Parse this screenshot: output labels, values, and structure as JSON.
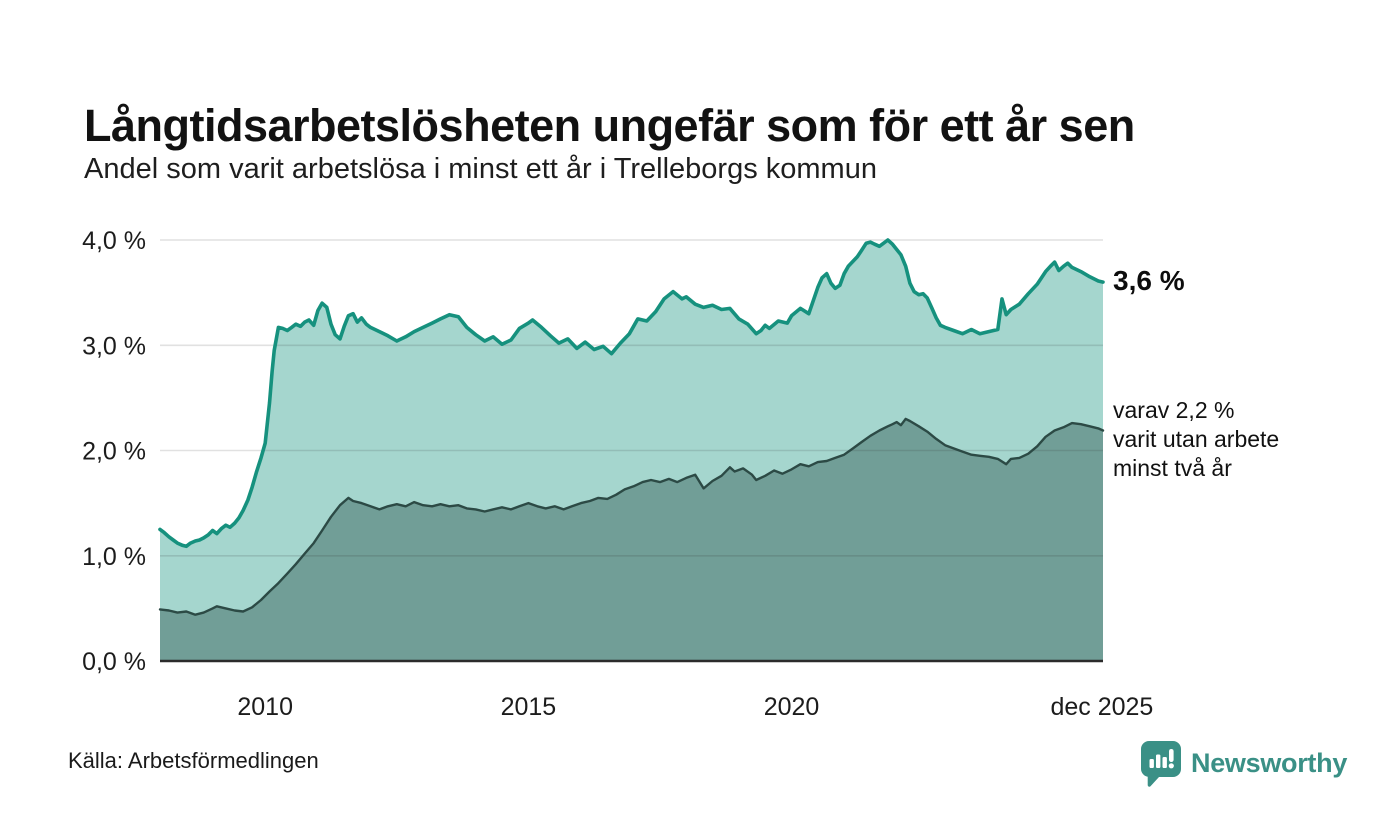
{
  "header": {
    "title": "Långtidsarbetslösheten ungefär som för ett år sen",
    "subtitle": "Andel som varit arbetslösa i minst ett år i Trelleborgs kommun"
  },
  "chart_data": {
    "type": "area",
    "title": "Långtidsarbetslösheten ungefär som för ett år sen",
    "subtitle": "Andel som varit arbetslösa i minst ett år i Trelleborgs kommun",
    "xlabel": "",
    "ylabel": "",
    "x_domain": [
      2008.0,
      2025.92
    ],
    "y_domain": [
      0,
      4
    ],
    "grid": "horizontal",
    "legend_position": "right-annotations",
    "y_ticks": [
      {
        "value": 0,
        "label": "0,0 %"
      },
      {
        "value": 1,
        "label": "1,0 %"
      },
      {
        "value": 2,
        "label": "2,0 %"
      },
      {
        "value": 3,
        "label": "3,0 %"
      },
      {
        "value": 4,
        "label": "4,0 %"
      }
    ],
    "x_ticks": [
      {
        "value": 2010,
        "label": "2010"
      },
      {
        "value": 2015,
        "label": "2015"
      },
      {
        "value": 2020,
        "label": "2020"
      },
      {
        "value": 2025.9,
        "label": "dec 2025"
      }
    ],
    "colors": {
      "series1_line": "#16917e",
      "series1_fill": "#a5d6ce",
      "series2_line": "#2c4a45",
      "series2_fill": "#719e97",
      "grid": "rgba(40,40,40,0.14)",
      "axis": "#2b2b2b"
    },
    "series": [
      {
        "name": "Andel arbetslösa minst ett år",
        "end_label": "3,6 %",
        "end_value": 3.6,
        "points": [
          [
            2008.0,
            1.25
          ],
          [
            2008.08,
            1.22
          ],
          [
            2008.17,
            1.18
          ],
          [
            2008.25,
            1.15
          ],
          [
            2008.33,
            1.12
          ],
          [
            2008.42,
            1.1
          ],
          [
            2008.5,
            1.09
          ],
          [
            2008.58,
            1.12
          ],
          [
            2008.67,
            1.14
          ],
          [
            2008.75,
            1.15
          ],
          [
            2008.83,
            1.17
          ],
          [
            2008.92,
            1.2
          ],
          [
            2009.0,
            1.24
          ],
          [
            2009.08,
            1.21
          ],
          [
            2009.17,
            1.26
          ],
          [
            2009.25,
            1.29
          ],
          [
            2009.33,
            1.27
          ],
          [
            2009.42,
            1.31
          ],
          [
            2009.5,
            1.36
          ],
          [
            2009.58,
            1.43
          ],
          [
            2009.67,
            1.53
          ],
          [
            2009.75,
            1.65
          ],
          [
            2009.83,
            1.79
          ],
          [
            2009.92,
            1.93
          ],
          [
            2010.0,
            2.07
          ],
          [
            2010.08,
            2.45
          ],
          [
            2010.13,
            2.75
          ],
          [
            2010.17,
            2.95
          ],
          [
            2010.25,
            3.17
          ],
          [
            2010.33,
            3.16
          ],
          [
            2010.42,
            3.14
          ],
          [
            2010.5,
            3.17
          ],
          [
            2010.58,
            3.2
          ],
          [
            2010.67,
            3.18
          ],
          [
            2010.75,
            3.22
          ],
          [
            2010.83,
            3.24
          ],
          [
            2010.92,
            3.19
          ],
          [
            2011.0,
            3.33
          ],
          [
            2011.08,
            3.4
          ],
          [
            2011.17,
            3.36
          ],
          [
            2011.25,
            3.2
          ],
          [
            2011.33,
            3.1
          ],
          [
            2011.42,
            3.06
          ],
          [
            2011.5,
            3.18
          ],
          [
            2011.58,
            3.28
          ],
          [
            2011.67,
            3.3
          ],
          [
            2011.75,
            3.22
          ],
          [
            2011.83,
            3.26
          ],
          [
            2011.92,
            3.2
          ],
          [
            2012.0,
            3.17
          ],
          [
            2012.17,
            3.13
          ],
          [
            2012.33,
            3.09
          ],
          [
            2012.5,
            3.04
          ],
          [
            2012.67,
            3.08
          ],
          [
            2012.83,
            3.13
          ],
          [
            2013.0,
            3.17
          ],
          [
            2013.17,
            3.21
          ],
          [
            2013.33,
            3.25
          ],
          [
            2013.5,
            3.29
          ],
          [
            2013.67,
            3.27
          ],
          [
            2013.83,
            3.17
          ],
          [
            2014.0,
            3.1
          ],
          [
            2014.17,
            3.04
          ],
          [
            2014.33,
            3.08
          ],
          [
            2014.5,
            3.01
          ],
          [
            2014.67,
            3.05
          ],
          [
            2014.83,
            3.16
          ],
          [
            2015.0,
            3.21
          ],
          [
            2015.08,
            3.24
          ],
          [
            2015.25,
            3.17
          ],
          [
            2015.42,
            3.09
          ],
          [
            2015.58,
            3.02
          ],
          [
            2015.75,
            3.06
          ],
          [
            2015.92,
            2.97
          ],
          [
            2016.08,
            3.03
          ],
          [
            2016.25,
            2.96
          ],
          [
            2016.42,
            2.99
          ],
          [
            2016.58,
            2.92
          ],
          [
            2016.75,
            3.02
          ],
          [
            2016.92,
            3.11
          ],
          [
            2017.08,
            3.25
          ],
          [
            2017.25,
            3.23
          ],
          [
            2017.42,
            3.32
          ],
          [
            2017.58,
            3.44
          ],
          [
            2017.75,
            3.51
          ],
          [
            2017.92,
            3.44
          ],
          [
            2018.0,
            3.46
          ],
          [
            2018.17,
            3.39
          ],
          [
            2018.33,
            3.36
          ],
          [
            2018.5,
            3.38
          ],
          [
            2018.67,
            3.34
          ],
          [
            2018.83,
            3.35
          ],
          [
            2019.0,
            3.25
          ],
          [
            2019.17,
            3.2
          ],
          [
            2019.33,
            3.11
          ],
          [
            2019.42,
            3.14
          ],
          [
            2019.5,
            3.19
          ],
          [
            2019.58,
            3.16
          ],
          [
            2019.75,
            3.23
          ],
          [
            2019.92,
            3.21
          ],
          [
            2020.0,
            3.28
          ],
          [
            2020.17,
            3.35
          ],
          [
            2020.33,
            3.3
          ],
          [
            2020.5,
            3.55
          ],
          [
            2020.58,
            3.64
          ],
          [
            2020.67,
            3.68
          ],
          [
            2020.75,
            3.59
          ],
          [
            2020.83,
            3.54
          ],
          [
            2020.92,
            3.57
          ],
          [
            2021.0,
            3.68
          ],
          [
            2021.08,
            3.75
          ],
          [
            2021.25,
            3.84
          ],
          [
            2021.33,
            3.9
          ],
          [
            2021.42,
            3.97
          ],
          [
            2021.5,
            3.98
          ],
          [
            2021.58,
            3.96
          ],
          [
            2021.67,
            3.94
          ],
          [
            2021.75,
            3.97
          ],
          [
            2021.83,
            4.0
          ],
          [
            2021.92,
            3.96
          ],
          [
            2022.0,
            3.91
          ],
          [
            2022.08,
            3.86
          ],
          [
            2022.17,
            3.75
          ],
          [
            2022.25,
            3.59
          ],
          [
            2022.33,
            3.51
          ],
          [
            2022.42,
            3.48
          ],
          [
            2022.5,
            3.49
          ],
          [
            2022.58,
            3.45
          ],
          [
            2022.67,
            3.35
          ],
          [
            2022.75,
            3.26
          ],
          [
            2022.83,
            3.19
          ],
          [
            2022.92,
            3.17
          ],
          [
            2023.08,
            3.14
          ],
          [
            2023.25,
            3.11
          ],
          [
            2023.42,
            3.15
          ],
          [
            2023.58,
            3.11
          ],
          [
            2023.75,
            3.13
          ],
          [
            2023.92,
            3.15
          ],
          [
            2024.0,
            3.44
          ],
          [
            2024.08,
            3.29
          ],
          [
            2024.17,
            3.34
          ],
          [
            2024.33,
            3.39
          ],
          [
            2024.5,
            3.49
          ],
          [
            2024.67,
            3.58
          ],
          [
            2024.83,
            3.7
          ],
          [
            2024.92,
            3.75
          ],
          [
            2025.0,
            3.79
          ],
          [
            2025.08,
            3.71
          ],
          [
            2025.17,
            3.75
          ],
          [
            2025.25,
            3.78
          ],
          [
            2025.33,
            3.74
          ],
          [
            2025.5,
            3.7
          ],
          [
            2025.67,
            3.65
          ],
          [
            2025.83,
            3.61
          ],
          [
            2025.92,
            3.6
          ]
        ]
      },
      {
        "name": "varav utan arbete minst två år",
        "end_label": "varav 2,2 %",
        "end_value": 2.2,
        "points": [
          [
            2008.0,
            0.49
          ],
          [
            2008.17,
            0.48
          ],
          [
            2008.33,
            0.46
          ],
          [
            2008.5,
            0.47
          ],
          [
            2008.67,
            0.44
          ],
          [
            2008.83,
            0.46
          ],
          [
            2009.0,
            0.5
          ],
          [
            2009.08,
            0.52
          ],
          [
            2009.25,
            0.5
          ],
          [
            2009.42,
            0.48
          ],
          [
            2009.58,
            0.47
          ],
          [
            2009.75,
            0.51
          ],
          [
            2009.92,
            0.58
          ],
          [
            2010.08,
            0.66
          ],
          [
            2010.25,
            0.74
          ],
          [
            2010.42,
            0.83
          ],
          [
            2010.58,
            0.92
          ],
          [
            2010.75,
            1.02
          ],
          [
            2010.92,
            1.12
          ],
          [
            2011.08,
            1.24
          ],
          [
            2011.25,
            1.37
          ],
          [
            2011.42,
            1.48
          ],
          [
            2011.58,
            1.55
          ],
          [
            2011.67,
            1.52
          ],
          [
            2011.83,
            1.5
          ],
          [
            2012.0,
            1.47
          ],
          [
            2012.17,
            1.44
          ],
          [
            2012.33,
            1.47
          ],
          [
            2012.5,
            1.49
          ],
          [
            2012.67,
            1.47
          ],
          [
            2012.83,
            1.51
          ],
          [
            2013.0,
            1.48
          ],
          [
            2013.17,
            1.47
          ],
          [
            2013.33,
            1.49
          ],
          [
            2013.5,
            1.47
          ],
          [
            2013.67,
            1.48
          ],
          [
            2013.83,
            1.45
          ],
          [
            2014.0,
            1.44
          ],
          [
            2014.17,
            1.42
          ],
          [
            2014.33,
            1.44
          ],
          [
            2014.5,
            1.46
          ],
          [
            2014.67,
            1.44
          ],
          [
            2014.83,
            1.47
          ],
          [
            2015.0,
            1.5
          ],
          [
            2015.17,
            1.47
          ],
          [
            2015.33,
            1.45
          ],
          [
            2015.5,
            1.47
          ],
          [
            2015.67,
            1.44
          ],
          [
            2015.83,
            1.47
          ],
          [
            2016.0,
            1.5
          ],
          [
            2016.17,
            1.52
          ],
          [
            2016.33,
            1.55
          ],
          [
            2016.5,
            1.54
          ],
          [
            2016.67,
            1.58
          ],
          [
            2016.83,
            1.63
          ],
          [
            2017.0,
            1.66
          ],
          [
            2017.17,
            1.7
          ],
          [
            2017.33,
            1.72
          ],
          [
            2017.5,
            1.7
          ],
          [
            2017.67,
            1.73
          ],
          [
            2017.83,
            1.7
          ],
          [
            2018.0,
            1.74
          ],
          [
            2018.17,
            1.77
          ],
          [
            2018.33,
            1.64
          ],
          [
            2018.5,
            1.71
          ],
          [
            2018.67,
            1.76
          ],
          [
            2018.83,
            1.84
          ],
          [
            2018.92,
            1.8
          ],
          [
            2019.08,
            1.83
          ],
          [
            2019.25,
            1.77
          ],
          [
            2019.33,
            1.72
          ],
          [
            2019.5,
            1.76
          ],
          [
            2019.67,
            1.81
          ],
          [
            2019.83,
            1.78
          ],
          [
            2020.0,
            1.82
          ],
          [
            2020.17,
            1.87
          ],
          [
            2020.33,
            1.85
          ],
          [
            2020.5,
            1.89
          ],
          [
            2020.67,
            1.9
          ],
          [
            2020.83,
            1.93
          ],
          [
            2021.0,
            1.96
          ],
          [
            2021.17,
            2.02
          ],
          [
            2021.33,
            2.08
          ],
          [
            2021.5,
            2.14
          ],
          [
            2021.67,
            2.19
          ],
          [
            2021.83,
            2.23
          ],
          [
            2021.92,
            2.25
          ],
          [
            2022.0,
            2.27
          ],
          [
            2022.08,
            2.24
          ],
          [
            2022.17,
            2.3
          ],
          [
            2022.25,
            2.28
          ],
          [
            2022.42,
            2.23
          ],
          [
            2022.58,
            2.18
          ],
          [
            2022.75,
            2.11
          ],
          [
            2022.92,
            2.05
          ],
          [
            2023.08,
            2.02
          ],
          [
            2023.25,
            1.99
          ],
          [
            2023.42,
            1.96
          ],
          [
            2023.58,
            1.95
          ],
          [
            2023.75,
            1.94
          ],
          [
            2023.92,
            1.92
          ],
          [
            2024.08,
            1.87
          ],
          [
            2024.17,
            1.92
          ],
          [
            2024.33,
            1.93
          ],
          [
            2024.5,
            1.97
          ],
          [
            2024.67,
            2.04
          ],
          [
            2024.83,
            2.13
          ],
          [
            2025.0,
            2.19
          ],
          [
            2025.17,
            2.22
          ],
          [
            2025.33,
            2.26
          ],
          [
            2025.5,
            2.25
          ],
          [
            2025.67,
            2.23
          ],
          [
            2025.83,
            2.21
          ],
          [
            2025.92,
            2.19
          ]
        ]
      }
    ],
    "annotations": [
      {
        "id": "total",
        "text": "3,6 %"
      },
      {
        "id": "two_years",
        "text": "varav 2,2 %\nvarit utan arbete\nminst två år"
      }
    ]
  },
  "footer": {
    "source": "Källa: Arbetsförmedlingen",
    "brand": "Newsworthy"
  }
}
